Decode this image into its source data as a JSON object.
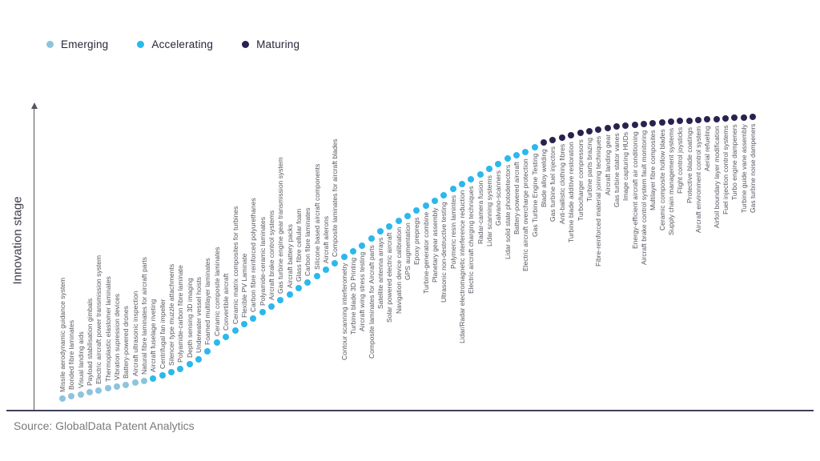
{
  "legend": {
    "items": [
      {
        "label": "Emerging",
        "color": "#8ec3de"
      },
      {
        "label": "Accelerating",
        "color": "#2bb8ec"
      },
      {
        "label": "Maturing",
        "color": "#2a2150"
      }
    ]
  },
  "source": "Source: GlobalData Patent Analytics",
  "chart_data": {
    "type": "scatter",
    "title": "",
    "ylabel": "Innovation stage",
    "xlabel": "",
    "legend": [
      "Emerging",
      "Accelerating",
      "Maturing"
    ],
    "legend_position": "top-left",
    "grid": false,
    "y_axis_ticks": [],
    "stage_colors": {
      "Emerging": "#8ec3de",
      "Accelerating": "#2bb8ec",
      "Maturing": "#2a2150"
    },
    "label_side_switch_index": 31,
    "items": [
      {
        "label": "Missile aerodynamic guidance system",
        "stage": "Emerging"
      },
      {
        "label": "Bonded fibre laminates",
        "stage": "Emerging"
      },
      {
        "label": "Visual landing aids",
        "stage": "Emerging"
      },
      {
        "label": "Payload stabilisation gimbals",
        "stage": "Emerging"
      },
      {
        "label": "Electric aircraft power transmission system",
        "stage": "Emerging"
      },
      {
        "label": "Thermoplastic elastomer laminates",
        "stage": "Emerging"
      },
      {
        "label": "Vibration supression devices",
        "stage": "Emerging"
      },
      {
        "label": "Battery-powered drones",
        "stage": "Emerging"
      },
      {
        "label": "Aircraft ultrasonic inspection",
        "stage": "Emerging"
      },
      {
        "label": "Natural fibre laminates for aircraft parts",
        "stage": "Emerging"
      },
      {
        "label": "Aircraft fuselage riveting",
        "stage": "Accelerating"
      },
      {
        "label": "Centrifugal fan impeller",
        "stage": "Accelerating"
      },
      {
        "label": "Silencer type muzzle attachments",
        "stage": "Accelerating"
      },
      {
        "label": "Polyamide-carbon fibre laminate",
        "stage": "Accelerating"
      },
      {
        "label": "Depth sensing 3D imaging",
        "stage": "Accelerating"
      },
      {
        "label": "Underwater vessel hoists",
        "stage": "Accelerating"
      },
      {
        "label": "Foamed multilayer laminates",
        "stage": "Accelerating"
      },
      {
        "label": "Ceramic composite laminates",
        "stage": "Accelerating"
      },
      {
        "label": "Convertible aircraft",
        "stage": "Accelerating"
      },
      {
        "label": "Ceramic matrix composites for turbines",
        "stage": "Accelerating"
      },
      {
        "label": "Flexible PV Laminate",
        "stage": "Accelerating"
      },
      {
        "label": "Carbon fibre reinforced polyurethanes",
        "stage": "Accelerating"
      },
      {
        "label": "Polyamide-ceramic laminates",
        "stage": "Accelerating"
      },
      {
        "label": "Aircraft brake control systems",
        "stage": "Accelerating"
      },
      {
        "label": "Gas turbine engine gear transmission system",
        "stage": "Accelerating"
      },
      {
        "label": "Aircraft battery packs",
        "stage": "Accelerating"
      },
      {
        "label": "Glass fibre cellular foam",
        "stage": "Accelerating"
      },
      {
        "label": "Carbon fibre laminates",
        "stage": "Accelerating"
      },
      {
        "label": "Silicone based aircraft components",
        "stage": "Accelerating"
      },
      {
        "label": "Aircraft ailerons",
        "stage": "Accelerating"
      },
      {
        "label": "Composite laminates for aircraft blades",
        "stage": "Accelerating"
      },
      {
        "label": "Contour scanning interferometry",
        "stage": "Accelerating"
      },
      {
        "label": "Turbine blade 3D Printing",
        "stage": "Accelerating"
      },
      {
        "label": "Aircraft wing stress testing",
        "stage": "Accelerating"
      },
      {
        "label": "Composite laminates for Aircraft parts",
        "stage": "Accelerating"
      },
      {
        "label": "Satellite antenna arrays",
        "stage": "Accelerating"
      },
      {
        "label": "Solar powered electric aircraft",
        "stage": "Accelerating"
      },
      {
        "label": "Navigation device calibration",
        "stage": "Accelerating"
      },
      {
        "label": "GPS augmentation",
        "stage": "Accelerating"
      },
      {
        "label": "Epoxy prepregs",
        "stage": "Accelerating"
      },
      {
        "label": "Turbine-generator combine",
        "stage": "Accelerating"
      },
      {
        "label": "Planetary gear assembly",
        "stage": "Accelerating"
      },
      {
        "label": "Ultrasonic non-destructive testing",
        "stage": "Accelerating"
      },
      {
        "label": "Polymeric resin lamintes",
        "stage": "Accelerating"
      },
      {
        "label": "Lidar/Radar electromagnetic interference reduction",
        "stage": "Accelerating"
      },
      {
        "label": "Electric aircraft charging techniques",
        "stage": "Accelerating"
      },
      {
        "label": "Radar-camera fusion",
        "stage": "Accelerating"
      },
      {
        "label": "Lidar scanning systems",
        "stage": "Accelerating"
      },
      {
        "label": "Galvano-scanners",
        "stage": "Accelerating"
      },
      {
        "label": "Lidar solid state photodetectors",
        "stage": "Accelerating"
      },
      {
        "label": "Battery-powered aircraft",
        "stage": "Accelerating"
      },
      {
        "label": "Electric aircraft overcharge protection",
        "stage": "Accelerating"
      },
      {
        "label": "Gas Turbine Engine Testing",
        "stage": "Accelerating"
      },
      {
        "label": "Blade alloy welding",
        "stage": "Maturing"
      },
      {
        "label": "Gas turbine fuel injectors",
        "stage": "Maturing"
      },
      {
        "label": "Anti-ballistic clothing fibres",
        "stage": "Maturing"
      },
      {
        "label": "Turbine blade additive restoration",
        "stage": "Maturing"
      },
      {
        "label": "Turbocharger compressors",
        "stage": "Maturing"
      },
      {
        "label": "Turbine parts brazing",
        "stage": "Maturing"
      },
      {
        "label": "Fibre-reinforced material joining techniques",
        "stage": "Maturing"
      },
      {
        "label": "Aircraft landing gear",
        "stage": "Maturing"
      },
      {
        "label": "Gas turbine stator vanes",
        "stage": "Maturing"
      },
      {
        "label": "Image capturing HUDs",
        "stage": "Maturing"
      },
      {
        "label": "Energy-efficient aircraft air conditioning",
        "stage": "Maturing"
      },
      {
        "label": "Aircraft brake control system fault monitoring",
        "stage": "Maturing"
      },
      {
        "label": "Multilayer fibre composites",
        "stage": "Maturing"
      },
      {
        "label": "Ceramic composite hollow blades",
        "stage": "Maturing"
      },
      {
        "label": "Supply chain management systems",
        "stage": "Maturing"
      },
      {
        "label": "Flight control joysticks",
        "stage": "Maturing"
      },
      {
        "label": "Protective blade coatings",
        "stage": "Maturing"
      },
      {
        "label": "Aircraft environment control system",
        "stage": "Maturing"
      },
      {
        "label": "Aerial refueling",
        "stage": "Maturing"
      },
      {
        "label": "Airfoil boundary layer modification",
        "stage": "Maturing"
      },
      {
        "label": "Fuel injection control systems",
        "stage": "Maturing"
      },
      {
        "label": "Turbo engine dampeners",
        "stage": "Maturing"
      },
      {
        "label": "Turbine guide vane assembly",
        "stage": "Maturing"
      },
      {
        "label": "Gas turbine noise dampeners",
        "stage": "Maturing"
      }
    ]
  }
}
